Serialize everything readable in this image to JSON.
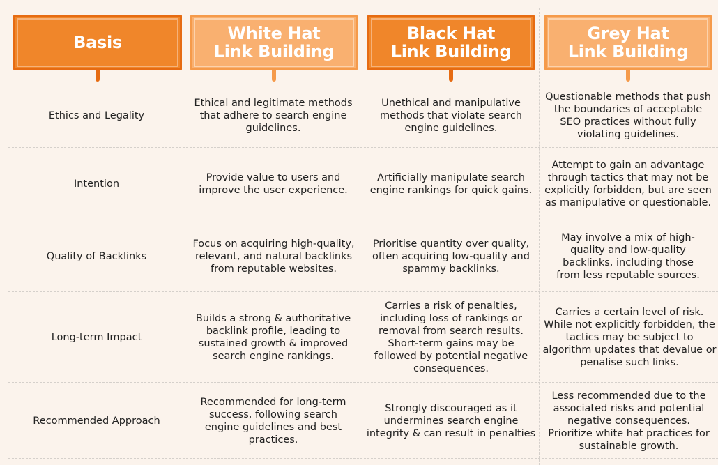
{
  "headers": [
    {
      "title": "Basis"
    },
    {
      "title": "White Hat\nLink Building"
    },
    {
      "title": "Black Hat\nLink Building"
    },
    {
      "title": "Grey Hat\nLink Building"
    }
  ],
  "rows": [
    {
      "basis": "Ethics and Legality",
      "white": "Ethical and legitimate methods that adhere to search engine guidelines.",
      "black": "Unethical and manipulative methods that violate search engine guidelines.",
      "grey": "Questionable methods that push the boundaries of acceptable SEO practices without fully violating guidelines."
    },
    {
      "basis": "Intention",
      "white": "Provide value to users and improve the user experience.",
      "black": "Artificially manipulate search engine rankings for quick gains.",
      "grey": "Attempt to gain an advantage through tactics that may not be explicitly forbidden, but are seen as manipulative or questionable."
    },
    {
      "basis": "Quality of Backlinks",
      "white": "Focus on acquiring high-quality, relevant, and natural backlinks from reputable websites.",
      "black": "Prioritise quantity over quality, often acquiring low-quality and spammy backlinks.",
      "grey": "May involve a mix of high-quality and low-quality backlinks, including those from less reputable sources."
    },
    {
      "basis": "Long-term Impact",
      "white": "Builds a strong & authoritative backlink profile, leading to sustained growth & improved search engine rankings.",
      "black": "Carries a risk of penalties, including loss of rankings or removal from search results. Short-term gains may be followed by potential negative consequences.",
      "grey": "Carries a certain level of risk. While not explicitly forbidden, the tactics may be subject to algorithm updates that devalue or penalise such links."
    },
    {
      "basis": "Recommended Approach",
      "white": "Recommended for long-term success, following search engine guidelines and best practices.",
      "black": "Strongly discouraged as it undermines search engine integrity & can result in penalties",
      "grey": "Less recommended due to the associated risks and potential negative consequences. Prioritize white hat practices for sustainable growth."
    }
  ]
}
